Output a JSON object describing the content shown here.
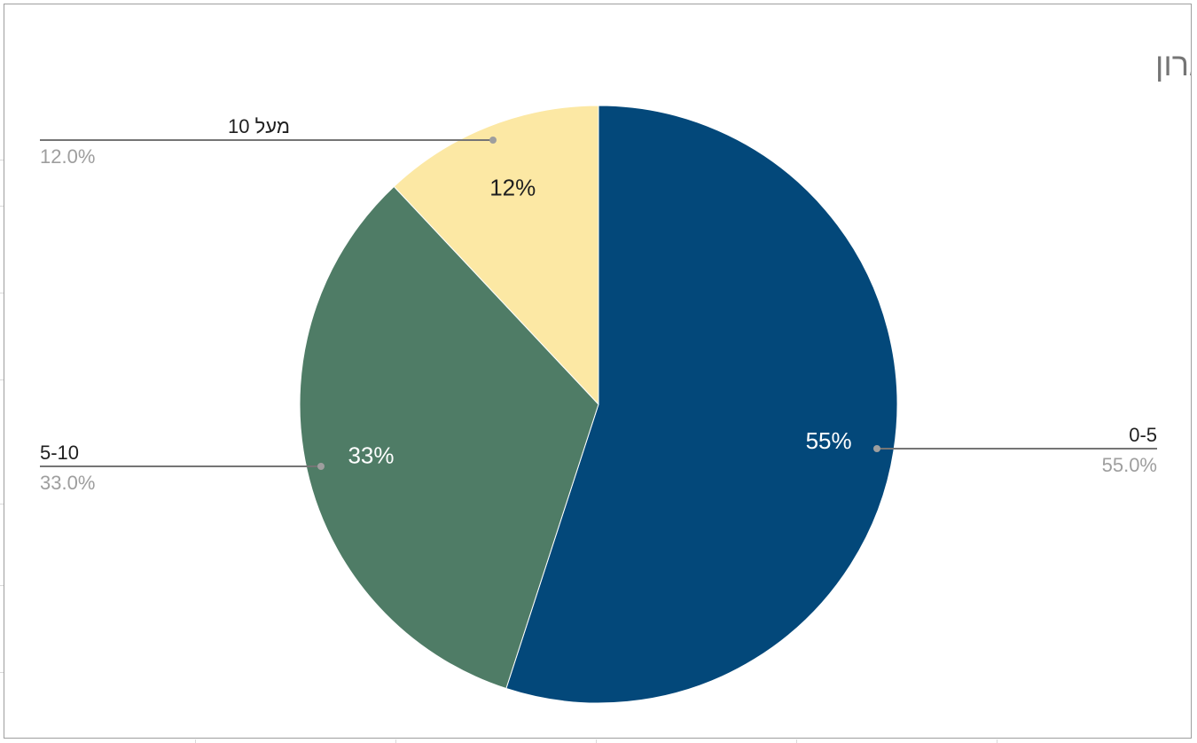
{
  "chart_data": {
    "type": "pie",
    "title": "כמה זוגות גרביים יש לכם בארון",
    "slices": [
      {
        "label": "0-5",
        "value": 55,
        "percent_label": "55%",
        "legend_percent": "55.0%",
        "color": "#03487a",
        "label_color": "#ffffff"
      },
      {
        "label": "5-10",
        "value": 33,
        "percent_label": "33%",
        "legend_percent": "33.0%",
        "color": "#4f7c66",
        "label_color": "#ffffff"
      },
      {
        "label": "מעל 10",
        "value": 12,
        "percent_label": "12%",
        "legend_percent": "12.0%",
        "color": "#fce8a4",
        "label_color": "#1f1f1f"
      }
    ],
    "start_angle_deg": 0,
    "direction": "clockwise",
    "legend": "labeled-leader-lines"
  }
}
